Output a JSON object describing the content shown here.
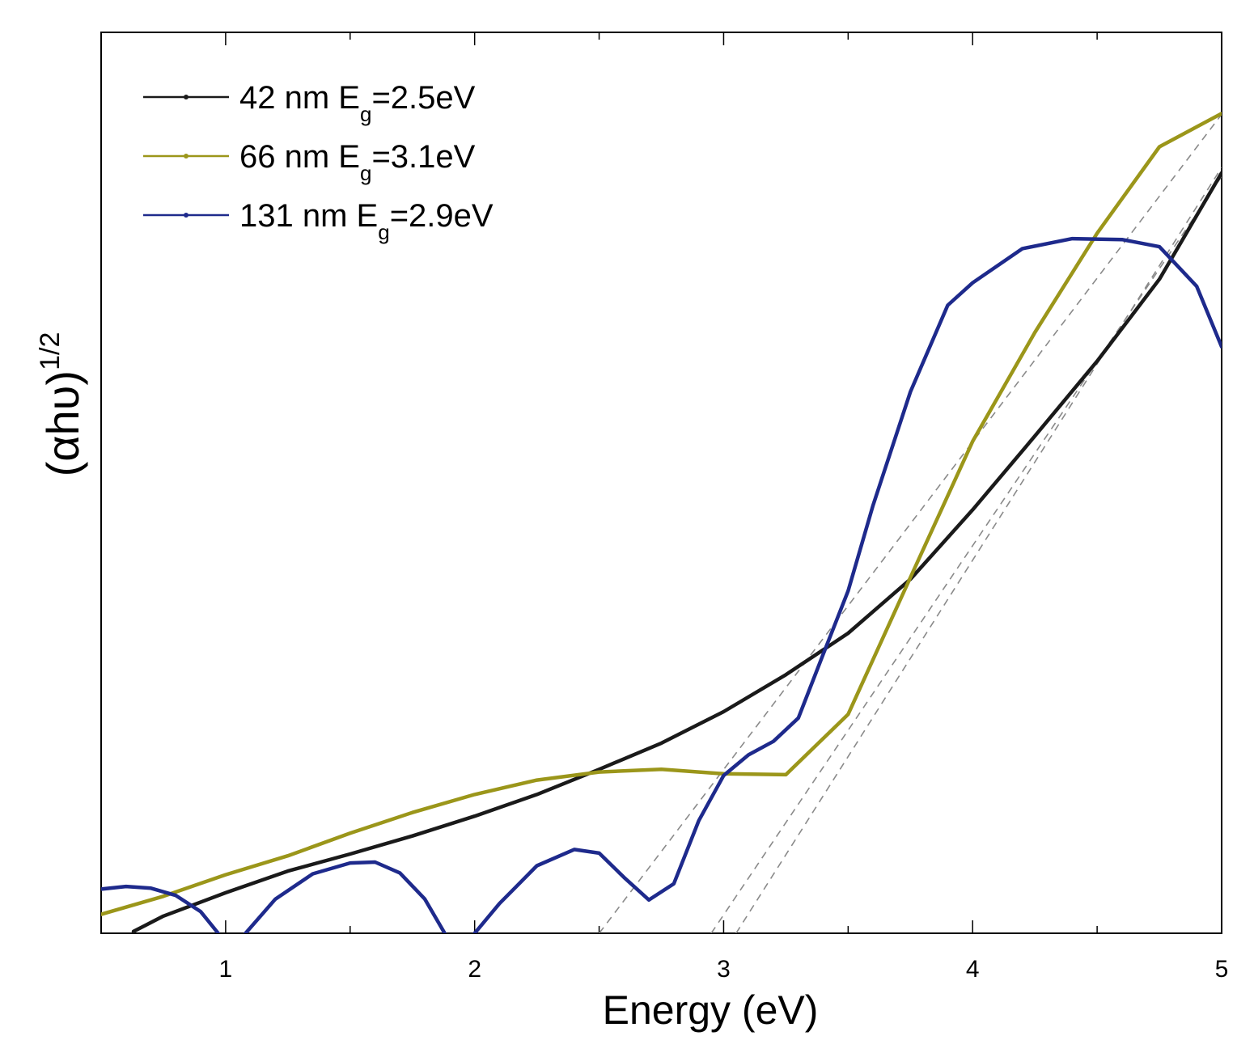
{
  "chart_data": {
    "type": "line",
    "title": "",
    "xlabel": "Energy (eV)",
    "ylabel": {
      "main": "(αhυ)",
      "sup": "1/2"
    },
    "xlim": [
      0.5,
      5.0
    ],
    "ylim": [
      0,
      100
    ],
    "xticks": [
      1,
      2,
      3,
      4,
      5
    ],
    "yticks_labeled": false,
    "grid": false,
    "legend_position": "top-left",
    "series": [
      {
        "name": "42 nm",
        "label_main": "42 nm  E",
        "label_sub": "g",
        "label_tail": "=2.5eV",
        "color": "#1a1a1a",
        "points": [
          [
            0.63,
            0.2
          ],
          [
            0.75,
            1.9
          ],
          [
            1.0,
            4.5
          ],
          [
            1.25,
            6.9
          ],
          [
            1.5,
            8.8
          ],
          [
            1.75,
            10.8
          ],
          [
            2.0,
            13.0
          ],
          [
            2.25,
            15.4
          ],
          [
            2.5,
            18.2
          ],
          [
            2.75,
            21.1
          ],
          [
            3.0,
            24.6
          ],
          [
            3.25,
            28.7
          ],
          [
            3.5,
            33.3
          ],
          [
            3.75,
            39.3
          ],
          [
            4.0,
            47.0
          ],
          [
            4.25,
            55.2
          ],
          [
            4.5,
            63.5
          ],
          [
            4.75,
            72.6
          ],
          [
            5.0,
            84.4
          ]
        ]
      },
      {
        "name": "66 nm",
        "label_main": "66 nm E",
        "label_sub": "g",
        "label_tail": "=3.1eV",
        "color": "#9b961a",
        "points": [
          [
            0.5,
            2.1
          ],
          [
            0.75,
            4.1
          ],
          [
            1.0,
            6.5
          ],
          [
            1.25,
            8.6
          ],
          [
            1.5,
            11.1
          ],
          [
            1.75,
            13.4
          ],
          [
            2.0,
            15.4
          ],
          [
            2.25,
            17.0
          ],
          [
            2.5,
            17.9
          ],
          [
            2.75,
            18.2
          ],
          [
            3.0,
            17.7
          ],
          [
            3.25,
            17.6
          ],
          [
            3.5,
            24.3
          ],
          [
            3.75,
            39.5
          ],
          [
            4.0,
            54.6
          ],
          [
            4.25,
            66.7
          ],
          [
            4.5,
            77.7
          ],
          [
            4.75,
            87.3
          ],
          [
            5.0,
            91.0
          ]
        ]
      },
      {
        "name": "131 nm",
        "label_main": "131 nm  E",
        "label_sub": "g",
        "label_tail": "=2.9eV",
        "color": "#1e2a8c",
        "segments": [
          [
            [
              0.5,
              4.9
            ],
            [
              0.6,
              5.2
            ],
            [
              0.7,
              5.0
            ],
            [
              0.8,
              4.2
            ],
            [
              0.9,
              2.4
            ],
            [
              0.97,
              0.0
            ]
          ],
          [
            [
              1.08,
              0.0
            ],
            [
              1.2,
              3.8
            ],
            [
              1.35,
              6.6
            ],
            [
              1.5,
              7.8
            ],
            [
              1.6,
              7.9
            ],
            [
              1.7,
              6.7
            ],
            [
              1.8,
              3.8
            ],
            [
              1.88,
              0.0
            ]
          ],
          [
            [
              2.0,
              0.0
            ],
            [
              2.1,
              3.3
            ],
            [
              2.25,
              7.5
            ],
            [
              2.4,
              9.3
            ],
            [
              2.5,
              8.9
            ],
            [
              2.6,
              6.2
            ],
            [
              2.7,
              3.7
            ],
            [
              2.8,
              5.5
            ],
            [
              2.9,
              12.5
            ],
            [
              3.0,
              17.5
            ],
            [
              3.1,
              19.8
            ],
            [
              3.2,
              21.3
            ],
            [
              3.3,
              23.9
            ],
            [
              3.4,
              31.0
            ],
            [
              3.5,
              38.0
            ],
            [
              3.6,
              47.5
            ],
            [
              3.75,
              60.1
            ],
            [
              3.9,
              69.7
            ],
            [
              4.0,
              72.2
            ],
            [
              4.2,
              76.0
            ],
            [
              4.4,
              77.1
            ],
            [
              4.6,
              77.0
            ],
            [
              4.75,
              76.2
            ],
            [
              4.9,
              71.8
            ],
            [
              5.0,
              65.1
            ]
          ]
        ]
      }
    ],
    "tangent_lines": [
      {
        "points": [
          [
            2.5,
            0.0
          ],
          [
            5.0,
            90.9
          ]
        ]
      },
      {
        "points": [
          [
            2.95,
            0.0
          ],
          [
            5.0,
            84.0
          ]
        ]
      },
      {
        "points": [
          [
            3.05,
            0.0
          ],
          [
            5.0,
            85.0
          ]
        ]
      }
    ]
  }
}
